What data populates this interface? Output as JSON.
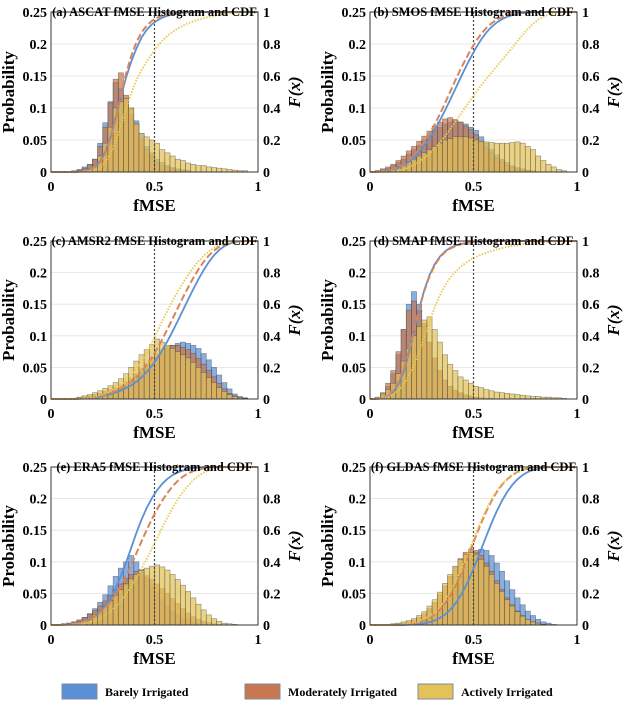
{
  "legend": [
    {
      "label": "Barely Irrigated",
      "color": "#5b8fd6"
    },
    {
      "label": "Moderately Irrigated",
      "color": "#c8784e"
    },
    {
      "label": "Actively Irrigated",
      "color": "#e3c257"
    }
  ],
  "chart_data": [
    {
      "type": "bar",
      "title": "(a) ASCAT fMSE Histogram and CDF",
      "xlabel": "fMSE",
      "ylabel": "Probability",
      "y2label": "F(x)",
      "xlim": [
        0,
        1
      ],
      "ylim": [
        0,
        0.25
      ],
      "y2lim": [
        0,
        1
      ],
      "bin_width": 0.025,
      "reference_line_x": 0.5,
      "grid": "horizontal",
      "series": [
        {
          "name": "Barely Irrigated",
          "values": [
            0,
            0,
            0,
            0,
            0.002,
            0.004,
            0.008,
            0.012,
            0.02,
            0.045,
            0.077,
            0.11,
            0.14,
            0.13,
            0.115,
            0.09,
            0.08,
            0.06,
            0.04,
            0.03,
            0.02,
            0.015,
            0.01,
            0.007,
            0.005,
            0.004,
            0.003,
            0,
            0,
            0,
            0,
            0,
            0,
            0,
            0,
            0,
            0,
            0,
            0,
            0
          ]
        },
        {
          "name": "Moderately Irrigated",
          "values": [
            0,
            0,
            0,
            0,
            0,
            0.003,
            0.006,
            0.012,
            0.02,
            0.04,
            0.07,
            0.108,
            0.145,
            0.155,
            0.12,
            0.1,
            0.075,
            0.05,
            0.035,
            0.025,
            0.015,
            0.01,
            0.008,
            0.005,
            0.003,
            0.002,
            0,
            0,
            0,
            0,
            0,
            0,
            0,
            0,
            0,
            0,
            0,
            0,
            0,
            0
          ]
        },
        {
          "name": "Actively Irrigated",
          "values": [
            0,
            0,
            0,
            0,
            0,
            0,
            0.002,
            0.005,
            0.01,
            0.025,
            0.045,
            0.07,
            0.1,
            0.11,
            0.115,
            0.1,
            0.075,
            0.06,
            0.055,
            0.05,
            0.045,
            0.035,
            0.03,
            0.025,
            0.02,
            0.018,
            0.014,
            0.012,
            0.01,
            0.01,
            0.008,
            0.007,
            0.006,
            0.005,
            0.004,
            0.003,
            0.002,
            0.002,
            0,
            0
          ]
        }
      ]
    },
    {
      "type": "bar",
      "title": "(b) SMOS fMSE Histogram and CDF",
      "xlabel": "fMSE",
      "ylabel": "Probability",
      "y2label": "F(x)",
      "xlim": [
        0,
        1
      ],
      "ylim": [
        0,
        0.25
      ],
      "y2lim": [
        0,
        1
      ],
      "bin_width": 0.025,
      "reference_line_x": 0.5,
      "grid": "horizontal",
      "series": [
        {
          "name": "Barely Irrigated",
          "values": [
            0,
            0.002,
            0.004,
            0.006,
            0.01,
            0.015,
            0.02,
            0.028,
            0.035,
            0.042,
            0.05,
            0.058,
            0.065,
            0.07,
            0.075,
            0.078,
            0.08,
            0.078,
            0.075,
            0.07,
            0.065,
            0.055,
            0.045,
            0.035,
            0.027,
            0.02,
            0.015,
            0.01,
            0.007,
            0.005,
            0.003,
            0.002,
            0,
            0,
            0,
            0,
            0,
            0,
            0,
            0
          ]
        },
        {
          "name": "Moderately Irrigated",
          "values": [
            0,
            0.002,
            0.005,
            0.008,
            0.012,
            0.018,
            0.025,
            0.033,
            0.04,
            0.048,
            0.056,
            0.064,
            0.072,
            0.078,
            0.083,
            0.085,
            0.082,
            0.078,
            0.072,
            0.066,
            0.058,
            0.048,
            0.038,
            0.03,
            0.022,
            0.016,
            0.011,
            0.008,
            0.005,
            0.003,
            0.002,
            0,
            0,
            0,
            0,
            0,
            0,
            0,
            0,
            0
          ]
        },
        {
          "name": "Actively Irrigated",
          "values": [
            0,
            0,
            0,
            0,
            0.005,
            0.008,
            0.012,
            0.016,
            0.02,
            0.025,
            0.03,
            0.035,
            0.04,
            0.045,
            0.05,
            0.052,
            0.055,
            0.055,
            0.055,
            0.053,
            0.05,
            0.048,
            0.047,
            0.046,
            0.045,
            0.045,
            0.045,
            0.046,
            0.047,
            0.045,
            0.04,
            0.035,
            0.025,
            0.018,
            0.012,
            0.008,
            0.004,
            0.002,
            0,
            0
          ]
        }
      ]
    },
    {
      "type": "bar",
      "title": "(c) AMSR2 fMSE Histogram and CDF",
      "xlabel": "fMSE",
      "ylabel": "Probability",
      "y2label": "F(x)",
      "xlim": [
        0,
        1
      ],
      "ylim": [
        0,
        0.25
      ],
      "y2lim": [
        0,
        1
      ],
      "bin_width": 0.025,
      "reference_line_x": 0.5,
      "grid": "horizontal",
      "series": [
        {
          "name": "Barely Irrigated",
          "values": [
            0,
            0,
            0,
            0,
            0.001,
            0.002,
            0.003,
            0.004,
            0.006,
            0.008,
            0.01,
            0.012,
            0.015,
            0.018,
            0.022,
            0.027,
            0.033,
            0.04,
            0.048,
            0.056,
            0.064,
            0.072,
            0.08,
            0.085,
            0.088,
            0.09,
            0.088,
            0.085,
            0.08,
            0.072,
            0.062,
            0.05,
            0.038,
            0.026,
            0.016,
            0.008,
            0.004,
            0.002,
            0,
            0
          ]
        },
        {
          "name": "Moderately Irrigated",
          "values": [
            0,
            0,
            0,
            0,
            0.001,
            0.002,
            0.003,
            0.005,
            0.007,
            0.009,
            0.012,
            0.015,
            0.018,
            0.022,
            0.027,
            0.033,
            0.04,
            0.048,
            0.056,
            0.064,
            0.072,
            0.078,
            0.083,
            0.085,
            0.085,
            0.082,
            0.078,
            0.072,
            0.064,
            0.055,
            0.045,
            0.035,
            0.025,
            0.016,
            0.009,
            0.005,
            0.002,
            0.001,
            0,
            0
          ]
        },
        {
          "name": "Actively Irrigated",
          "values": [
            0,
            0,
            0,
            0,
            0.001,
            0.003,
            0.005,
            0.007,
            0.01,
            0.013,
            0.017,
            0.021,
            0.026,
            0.032,
            0.04,
            0.05,
            0.06,
            0.07,
            0.078,
            0.086,
            0.095,
            0.09,
            0.085,
            0.08,
            0.075,
            0.07,
            0.065,
            0.058,
            0.05,
            0.042,
            0.034,
            0.026,
            0.018,
            0.012,
            0.007,
            0.004,
            0.002,
            0.001,
            0,
            0
          ]
        }
      ]
    },
    {
      "type": "bar",
      "title": "(d) SMAP fMSE Histogram and CDF",
      "xlabel": "fMSE",
      "ylabel": "Probability",
      "y2label": "F(x)",
      "xlim": [
        0,
        1
      ],
      "ylim": [
        0,
        0.25
      ],
      "y2lim": [
        0,
        1
      ],
      "bin_width": 0.025,
      "reference_line_x": 0.5,
      "grid": "horizontal",
      "series": [
        {
          "name": "Barely Irrigated",
          "values": [
            0,
            0.002,
            0.008,
            0.02,
            0.04,
            0.07,
            0.11,
            0.15,
            0.17,
            0.15,
            0.12,
            0.09,
            0.065,
            0.045,
            0.03,
            0.02,
            0.013,
            0.009,
            0.006,
            0.004,
            0.003,
            0.002,
            0.001,
            0.001,
            0,
            0,
            0,
            0,
            0,
            0,
            0,
            0,
            0,
            0,
            0,
            0,
            0,
            0,
            0,
            0
          ]
        },
        {
          "name": "Moderately Irrigated",
          "values": [
            0,
            0.002,
            0.01,
            0.025,
            0.045,
            0.075,
            0.11,
            0.14,
            0.155,
            0.14,
            0.115,
            0.09,
            0.065,
            0.045,
            0.03,
            0.02,
            0.014,
            0.01,
            0.007,
            0.005,
            0.003,
            0.002,
            0.001,
            0.001,
            0,
            0,
            0,
            0,
            0,
            0,
            0,
            0,
            0,
            0,
            0,
            0,
            0,
            0,
            0,
            0
          ]
        },
        {
          "name": "Actively Irrigated",
          "values": [
            0,
            0.003,
            0.008,
            0.015,
            0.025,
            0.04,
            0.06,
            0.08,
            0.1,
            0.115,
            0.125,
            0.13,
            0.11,
            0.09,
            0.07,
            0.055,
            0.045,
            0.035,
            0.03,
            0.025,
            0.02,
            0.018,
            0.015,
            0.013,
            0.011,
            0.01,
            0.009,
            0.008,
            0.007,
            0.006,
            0.005,
            0.004,
            0.004,
            0.003,
            0.003,
            0.002,
            0.002,
            0.001,
            0,
            0
          ]
        }
      ]
    },
    {
      "type": "bar",
      "title": "(e) ERA5 fMSE Histogram and CDF",
      "xlabel": "fMSE",
      "ylabel": "Probability",
      "y2label": "F(x)",
      "xlim": [
        0,
        1
      ],
      "ylim": [
        0,
        0.25
      ],
      "y2lim": [
        0,
        1
      ],
      "bin_width": 0.025,
      "reference_line_x": 0.5,
      "grid": "horizontal",
      "series": [
        {
          "name": "Barely Irrigated",
          "values": [
            0,
            0.001,
            0.002,
            0.003,
            0.005,
            0.008,
            0.012,
            0.018,
            0.026,
            0.036,
            0.048,
            0.062,
            0.077,
            0.09,
            0.1,
            0.11,
            0.1,
            0.088,
            0.075,
            0.062,
            0.05,
            0.04,
            0.03,
            0.022,
            0.016,
            0.011,
            0.008,
            0.005,
            0.003,
            0.002,
            0.001,
            0,
            0,
            0,
            0,
            0,
            0,
            0,
            0,
            0
          ]
        },
        {
          "name": "Moderately Irrigated",
          "values": [
            0,
            0.001,
            0.002,
            0.003,
            0.005,
            0.008,
            0.012,
            0.017,
            0.023,
            0.03,
            0.038,
            0.047,
            0.056,
            0.065,
            0.073,
            0.08,
            0.085,
            0.083,
            0.078,
            0.072,
            0.065,
            0.058,
            0.05,
            0.042,
            0.034,
            0.026,
            0.019,
            0.013,
            0.009,
            0.006,
            0.004,
            0.002,
            0.001,
            0,
            0,
            0,
            0,
            0,
            0,
            0
          ]
        },
        {
          "name": "Actively Irrigated",
          "values": [
            0,
            0,
            0.001,
            0.002,
            0.003,
            0.005,
            0.008,
            0.012,
            0.017,
            0.023,
            0.03,
            0.038,
            0.047,
            0.056,
            0.065,
            0.073,
            0.08,
            0.086,
            0.09,
            0.093,
            0.095,
            0.092,
            0.087,
            0.08,
            0.072,
            0.063,
            0.053,
            0.043,
            0.033,
            0.024,
            0.016,
            0.01,
            0.006,
            0.003,
            0.002,
            0.001,
            0,
            0,
            0,
            0
          ]
        }
      ]
    },
    {
      "type": "bar",
      "title": "(f) GLDAS fMSE Histogram and CDF",
      "xlabel": "fMSE",
      "ylabel": "Probability",
      "y2label": "F(x)",
      "xlim": [
        0,
        1
      ],
      "ylim": [
        0,
        0.25
      ],
      "y2lim": [
        0,
        1
      ],
      "bin_width": 0.025,
      "reference_line_x": 0.5,
      "grid": "horizontal",
      "series": [
        {
          "name": "Barely Irrigated",
          "values": [
            0,
            0,
            0,
            0,
            0,
            0,
            0.001,
            0.002,
            0.003,
            0.005,
            0.008,
            0.012,
            0.018,
            0.026,
            0.036,
            0.048,
            0.062,
            0.077,
            0.092,
            0.105,
            0.115,
            0.12,
            0.118,
            0.11,
            0.098,
            0.085,
            0.07,
            0.056,
            0.043,
            0.032,
            0.022,
            0.015,
            0.009,
            0.005,
            0.003,
            0.001,
            0,
            0,
            0,
            0
          ]
        },
        {
          "name": "Moderately Irrigated",
          "values": [
            0,
            0,
            0,
            0,
            0.001,
            0.002,
            0.003,
            0.005,
            0.008,
            0.012,
            0.018,
            0.026,
            0.036,
            0.048,
            0.062,
            0.077,
            0.092,
            0.105,
            0.115,
            0.12,
            0.118,
            0.11,
            0.098,
            0.085,
            0.07,
            0.056,
            0.043,
            0.032,
            0.022,
            0.015,
            0.009,
            0.005,
            0.003,
            0.001,
            0,
            0,
            0,
            0,
            0,
            0
          ]
        },
        {
          "name": "Actively Irrigated",
          "values": [
            0,
            0,
            0,
            0,
            0.002,
            0.003,
            0.005,
            0.007,
            0.01,
            0.015,
            0.021,
            0.03,
            0.04,
            0.052,
            0.066,
            0.08,
            0.093,
            0.104,
            0.112,
            0.115,
            0.112,
            0.104,
            0.093,
            0.08,
            0.066,
            0.053,
            0.04,
            0.03,
            0.021,
            0.014,
            0.009,
            0.005,
            0.003,
            0.001,
            0,
            0,
            0,
            0,
            0,
            0
          ]
        }
      ]
    }
  ]
}
